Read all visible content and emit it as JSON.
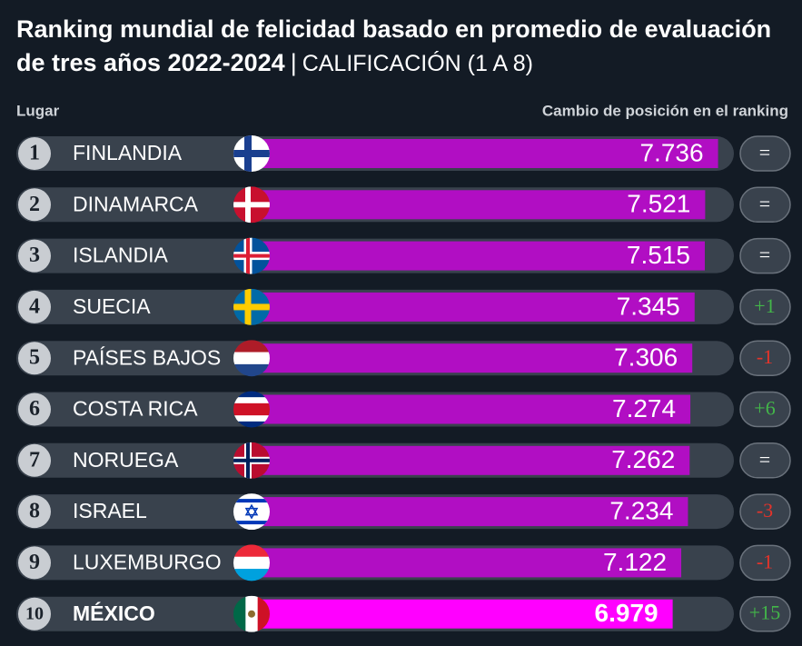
{
  "chart_data": {
    "type": "bar",
    "title": "Ranking mundial de felicidad basado en promedio de evaluación de tres años 2022-2024",
    "subtitle": "CALIFICACIÓN (1 A 8)",
    "rank_label": "Lugar",
    "change_label": "Cambio de posición en el ranking",
    "ranks": [
      1,
      2,
      3,
      4,
      5,
      6,
      7,
      8,
      9,
      10
    ],
    "categories": [
      "FINLANDIA",
      "DINAMARCA",
      "ISLANDIA",
      "SUECIA",
      "PAÍSES BAJOS",
      "COSTA RICA",
      "NORUEGA",
      "ISRAEL",
      "LUXEMBURGO",
      "MÉXICO"
    ],
    "values": [
      7.736,
      7.521,
      7.515,
      7.345,
      7.306,
      7.274,
      7.262,
      7.234,
      7.122,
      6.979
    ],
    "changes": [
      "=",
      "=",
      "=",
      "+1",
      "-1",
      "+6",
      "=",
      "-3",
      "-1",
      "+15"
    ],
    "colors": [
      "#b10ec3",
      "#b10ec3",
      "#b10ec3",
      "#b10ec3",
      "#b10ec3",
      "#b10ec3",
      "#b10ec3",
      "#b10ec3",
      "#b10ec3",
      "#ff00ff"
    ]
  }
}
